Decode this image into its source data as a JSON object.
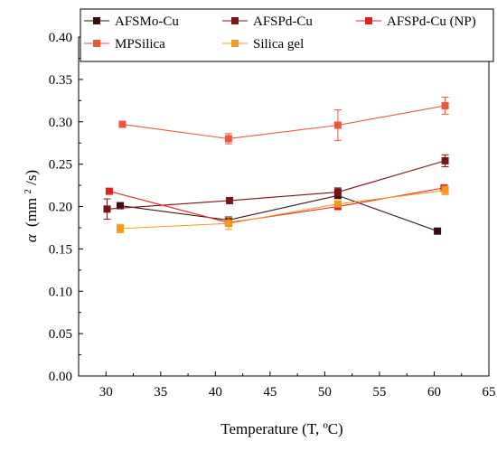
{
  "chart_data": {
    "type": "line",
    "xlabel": "Temperature (T, ºC)",
    "ylabel_symbol": "α",
    "ylabel_unit_prefix": "(mm",
    "ylabel_unit_sup": "2",
    "ylabel_unit_suffix": "/s)",
    "xlim": [
      27.5,
      65
    ],
    "ylim": [
      0,
      0.4
    ],
    "xticks": [
      "30",
      "35",
      "40",
      "45",
      "50",
      "55",
      "60",
      "65"
    ],
    "yticks": [
      "0.00",
      "0.05",
      "0.10",
      "0.15",
      "0.20",
      "0.25",
      "0.30",
      "0.35",
      "0.40"
    ],
    "legend_position": "top",
    "series": [
      {
        "name": "AFSMo-Cu",
        "color": "#3b0f0f",
        "points": [
          {
            "x": 31.3,
            "y": 0.201,
            "err": 0.0
          },
          {
            "x": 41.2,
            "y": 0.184,
            "err": 0.0
          },
          {
            "x": 51.2,
            "y": 0.213,
            "err": 0.0
          },
          {
            "x": 60.3,
            "y": 0.171,
            "err": 0.0
          }
        ]
      },
      {
        "name": "AFSPd-Cu",
        "color": "#7b1414",
        "points": [
          {
            "x": 30.1,
            "y": 0.197,
            "err": 0.012
          },
          {
            "x": 41.3,
            "y": 0.207,
            "err": 0.0
          },
          {
            "x": 51.2,
            "y": 0.217,
            "err": 0.005
          },
          {
            "x": 61.0,
            "y": 0.254,
            "err": 0.007
          }
        ]
      },
      {
        "name": "AFSPd-Cu (NP)",
        "color": "#e3211c",
        "points": [
          {
            "x": 30.3,
            "y": 0.218,
            "err": 0.0
          },
          {
            "x": 41.2,
            "y": 0.181,
            "err": 0.0
          },
          {
            "x": 51.2,
            "y": 0.2,
            "err": 0.0
          },
          {
            "x": 60.9,
            "y": 0.222,
            "err": 0.0
          }
        ]
      },
      {
        "name": "MPSilica",
        "color": "#f0553a",
        "points": [
          {
            "x": 31.5,
            "y": 0.297,
            "err": 0.0
          },
          {
            "x": 41.2,
            "y": 0.28,
            "err": 0.006
          },
          {
            "x": 51.2,
            "y": 0.296,
            "err": 0.018
          },
          {
            "x": 61.0,
            "y": 0.319,
            "err": 0.01
          }
        ]
      },
      {
        "name": "Silica gel",
        "color": "#f39a1f",
        "points": [
          {
            "x": 31.3,
            "y": 0.174,
            "err": 0.005
          },
          {
            "x": 41.2,
            "y": 0.18,
            "err": 0.007
          },
          {
            "x": 51.2,
            "y": 0.203,
            "err": 0.0
          },
          {
            "x": 61.0,
            "y": 0.219,
            "err": 0.005
          }
        ]
      }
    ]
  }
}
